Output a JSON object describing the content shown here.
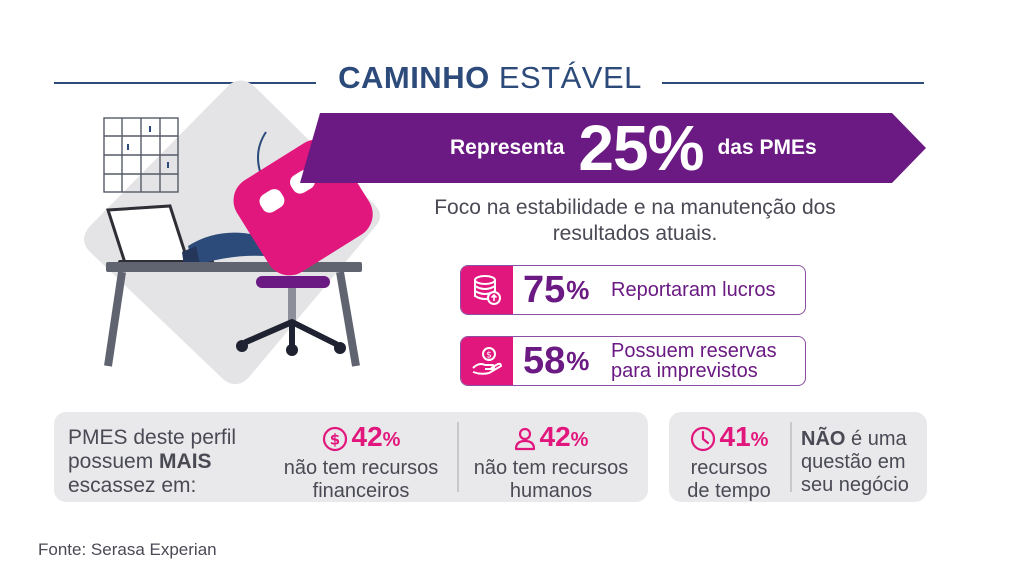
{
  "title": {
    "bold": "CAMINHO",
    "rest": "ESTÁVEL"
  },
  "banner": {
    "prefix": "Representa",
    "percent": "25%",
    "suffix": "das PMEs"
  },
  "description": "Foco na estabilidade e na manutenção dos resultados atuais.",
  "stats": [
    {
      "icon": "coin-stack-icon",
      "value": "75",
      "unit": "%",
      "label": "Reportaram lucros"
    },
    {
      "icon": "hand-coin-icon",
      "value": "58",
      "unit": "%",
      "label_line1": "Possuem reservas",
      "label_line2": "para imprevistos"
    }
  ],
  "scarcity": {
    "intro_line1": "PMES deste perfil",
    "intro_line2_plain": "possuem ",
    "intro_line2_bold": "MAIS",
    "intro_line3": "escassez em:",
    "items": [
      {
        "icon": "dollar-circle-icon",
        "value": "42",
        "unit": "%",
        "line1": "não tem recursos",
        "line2": "financeiros"
      },
      {
        "icon": "person-icon",
        "value": "42",
        "unit": "%",
        "line1": "não tem recursos",
        "line2": "humanos"
      }
    ]
  },
  "time": {
    "icon": "clock-icon",
    "value": "41",
    "unit": "%",
    "line1": "recursos",
    "line2": "de tempo",
    "note_bold": "NÃO",
    "note_rest1": " é uma",
    "note_line2": "questão em",
    "note_line3": "seu negócio"
  },
  "source": "Fonte: Serasa Experian",
  "colors": {
    "navy": "#2c4a7a",
    "purple": "#6a1a82",
    "magenta": "#e2177d",
    "panel": "#e9e9eb"
  }
}
